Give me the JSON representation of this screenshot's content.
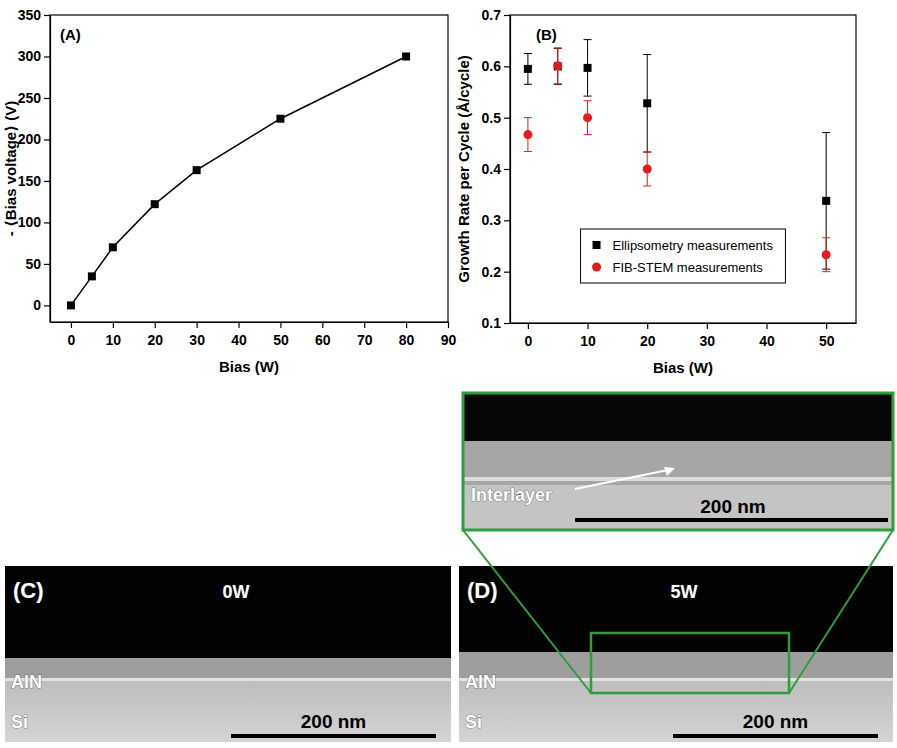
{
  "chart_data": [
    {
      "type": "line",
      "panel": "(A)",
      "x_label": "Bias (W)",
      "y_label": "- ⟨Bias voltage⟩ (V)",
      "x": [
        0,
        5,
        10,
        20,
        30,
        50,
        80
      ],
      "values": [
        0,
        35,
        70,
        122,
        163,
        225,
        300
      ],
      "color": "#000000",
      "marker": "square",
      "xlim": [
        -5,
        90
      ],
      "xticks": [
        0,
        10,
        20,
        30,
        40,
        50,
        60,
        70,
        80,
        90
      ],
      "ylim": [
        -20,
        350
      ],
      "yticks": [
        0,
        50,
        100,
        150,
        200,
        250,
        300,
        350
      ]
    },
    {
      "type": "scatter",
      "panel": "(B)",
      "x_label": "Bias (W)",
      "y_label": "Growth Rate per Cycle (Å/cycle)",
      "x": [
        0,
        5,
        10,
        20,
        50
      ],
      "series": [
        {
          "name": "Ellipsometry measurements",
          "color": "#000000",
          "marker": "square",
          "values": [
            0.595,
            0.6,
            0.597,
            0.528,
            0.338
          ],
          "errors": [
            0.03,
            0.035,
            0.055,
            0.095,
            0.133
          ]
        },
        {
          "name": "FIB-STEM measurements",
          "color": "#e8191c",
          "marker": "circle",
          "values": [
            0.467,
            0.601,
            0.5,
            0.4,
            0.233
          ],
          "errors": [
            0.033,
            0.035,
            0.033,
            0.033,
            0.033
          ]
        }
      ],
      "legend": "lower center",
      "xlim": [
        -3,
        55
      ],
      "xticks": [
        0,
        10,
        20,
        30,
        40,
        50
      ],
      "ylim": [
        0.1,
        0.7
      ],
      "yticks": [
        0.1,
        0.2,
        0.3,
        0.4,
        0.5,
        0.6,
        0.7
      ]
    }
  ],
  "images": [
    {
      "panel": "(C)",
      "label": "0W",
      "layers": [
        "AlN",
        "Si"
      ],
      "scale_bar": "200 nm"
    },
    {
      "panel": "(D)",
      "label": "5W",
      "layers": [
        "AlN",
        "Si"
      ],
      "scale_bar": "200 nm",
      "inset": {
        "annotation": "Interlayer",
        "scale_bar": "200 nm"
      }
    }
  ]
}
